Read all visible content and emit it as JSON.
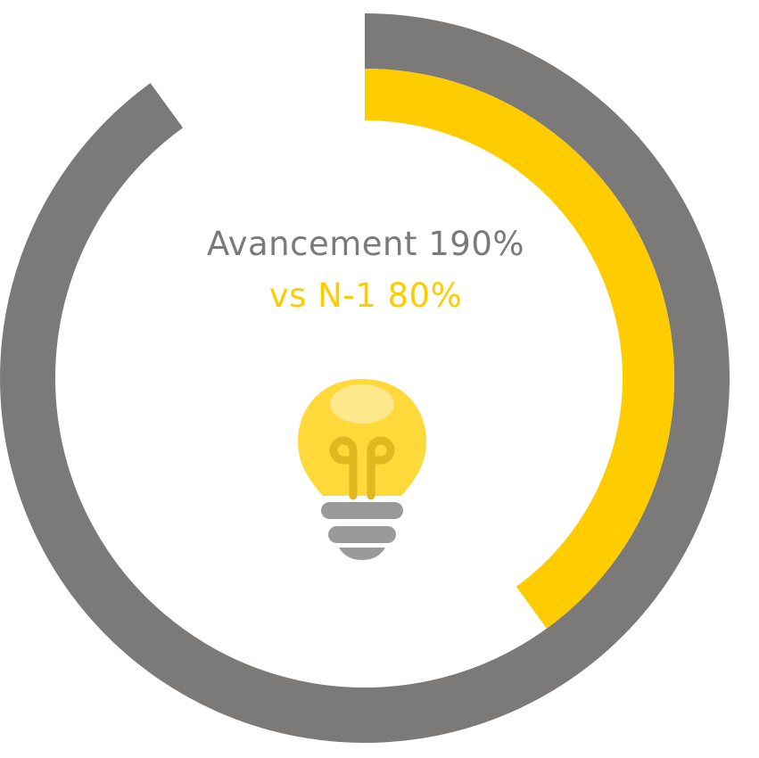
{
  "chart_data": {
    "type": "radial-gauge",
    "series": [
      {
        "name": "Avancement",
        "value": 190,
        "unit": "%",
        "color": "#7b7a78"
      },
      {
        "name": "vs N-1",
        "value": 80,
        "unit": "%",
        "color": "#ffcc00"
      }
    ],
    "labels": {
      "primary": "Avancement 190%",
      "secondary": "vs N-1 80%"
    },
    "center_icon": "lightbulb-icon",
    "colors": {
      "primary": "#7b7a78",
      "accent": "#ffcc00",
      "bulb": "#ffd939",
      "bulb_highlight": "#ffe88c",
      "filament": "#e0b81f",
      "base": "#9a9a9a"
    }
  }
}
